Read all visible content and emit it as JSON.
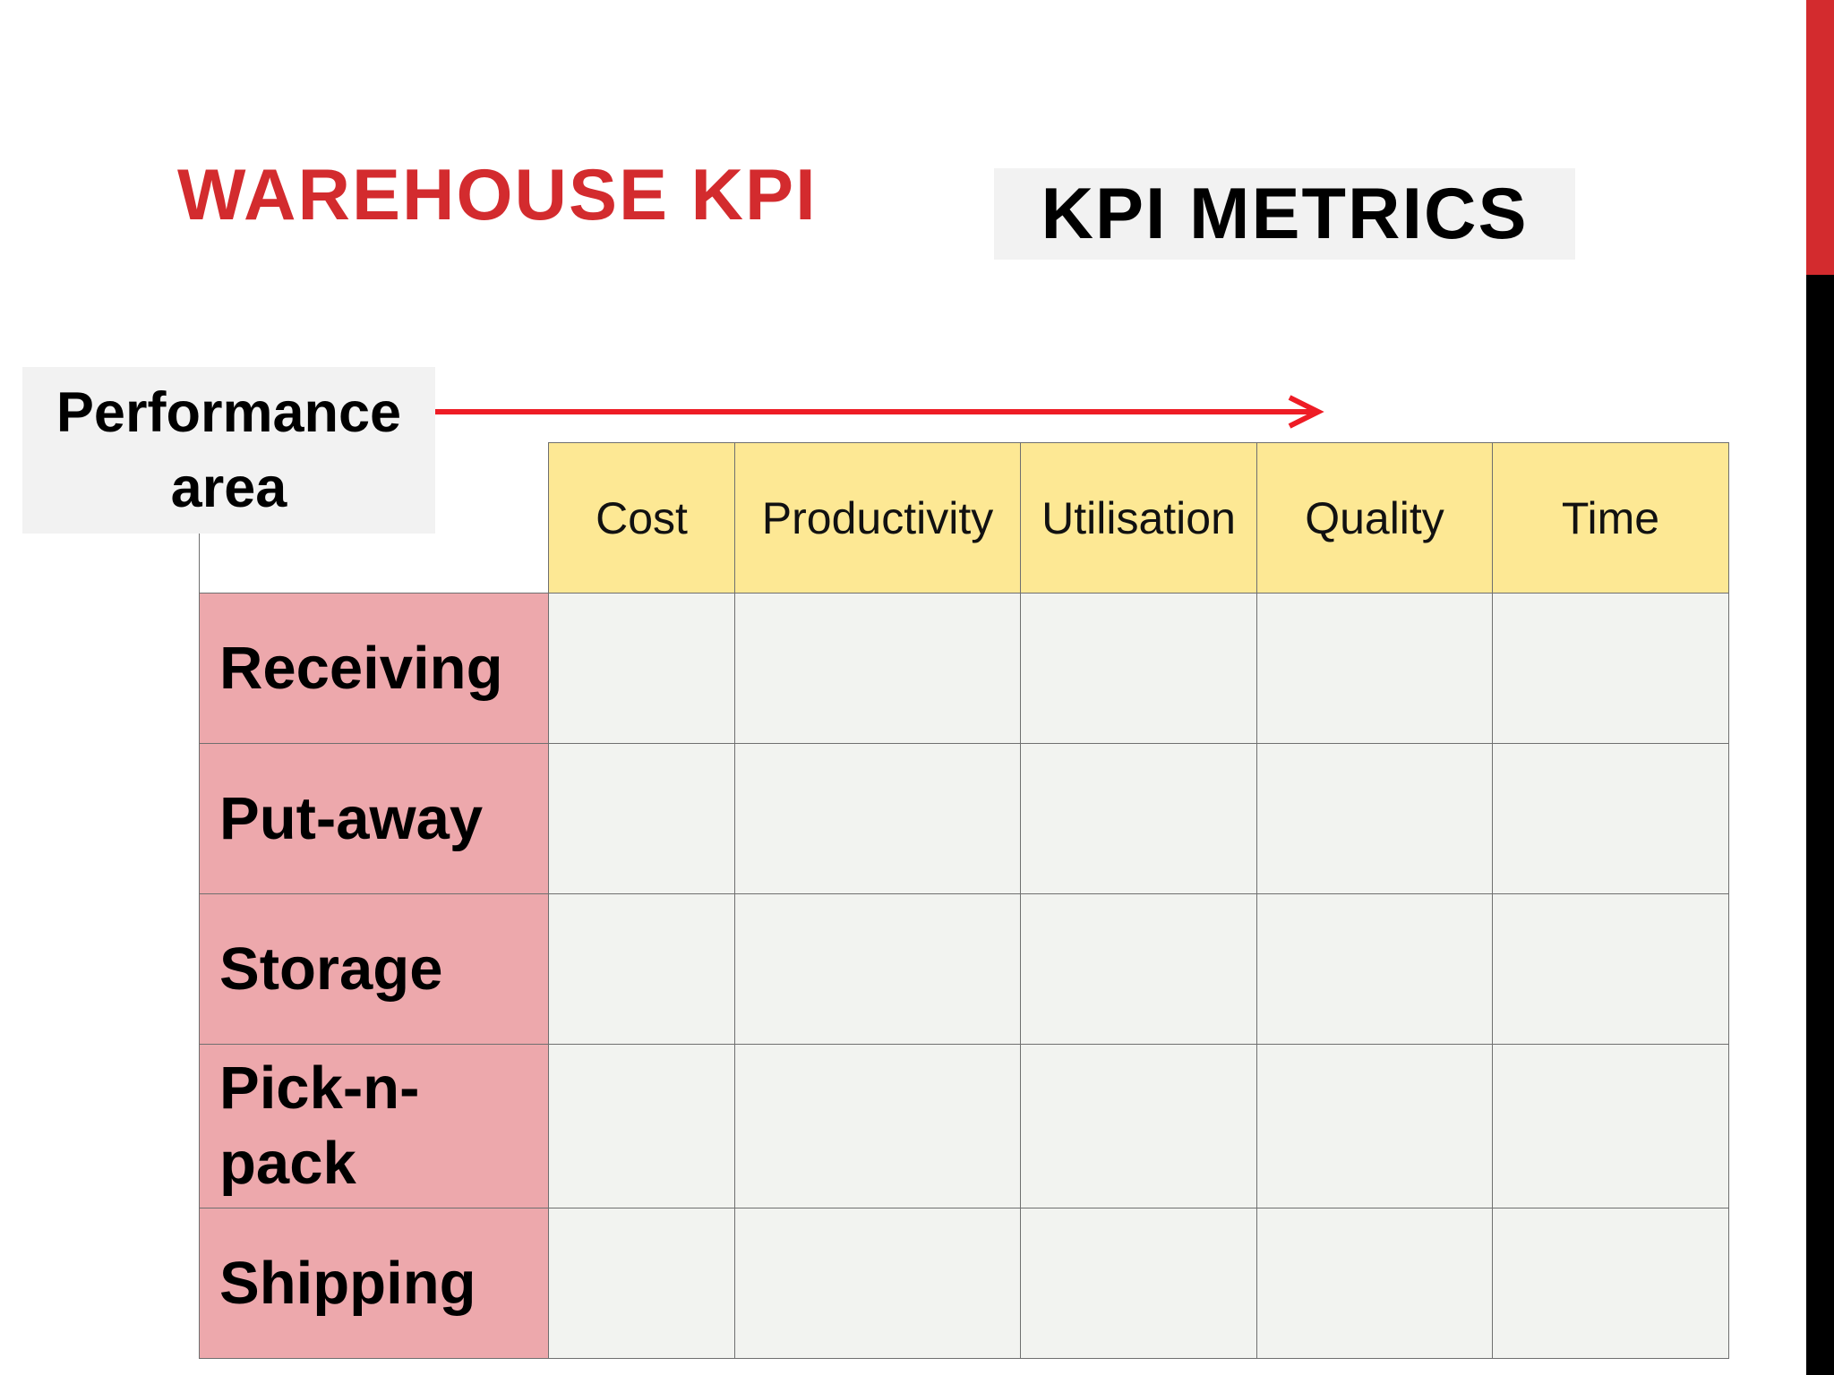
{
  "slide": {
    "title": "WAREHOUSE KPI",
    "metrics_label": "KPI METRICS",
    "performance_area_label": "Performance area"
  },
  "table": {
    "columns": [
      "Cost",
      "Productivity",
      "Utilisation",
      "Quality",
      "Time"
    ],
    "rows": [
      "Receiving",
      "Put-away",
      "Storage",
      "Pick-n-pack",
      "Shipping"
    ]
  },
  "colors": {
    "title": "#d32b2e",
    "arrow": "#ee1c25",
    "header_fill": "#fde894",
    "row_header_fill": "#eda8ac",
    "cell_fill": "#f2f3f0",
    "edge_top": "#d32b2e",
    "edge_bottom": "#000000"
  }
}
